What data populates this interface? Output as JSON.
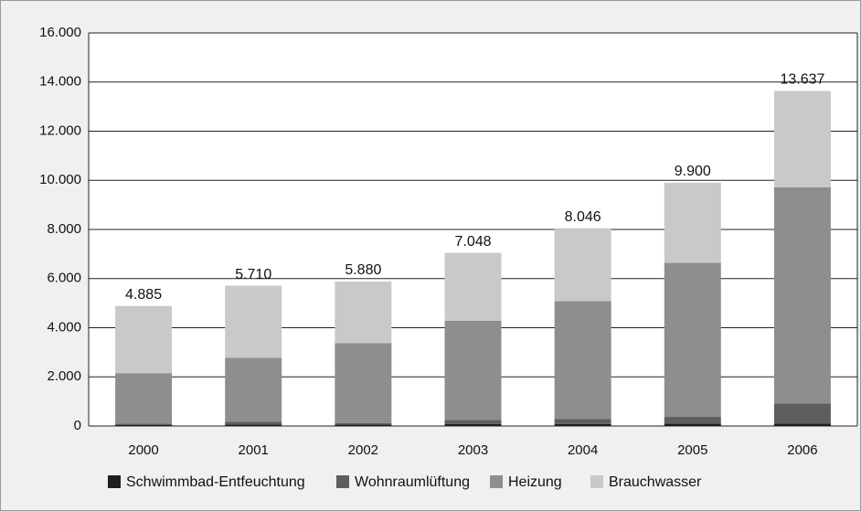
{
  "chart_data": {
    "type": "stacked_bar",
    "categories": [
      "2000",
      "2001",
      "2002",
      "2003",
      "2004",
      "2005",
      "2006"
    ],
    "series": [
      {
        "name": "Schwimmbad-Entfeuchtung",
        "color": "#1e1e1e",
        "values": [
          50,
          60,
          60,
          80,
          80,
          90,
          100
        ]
      },
      {
        "name": "Wohnraumlüftung",
        "color": "#5e5e5e",
        "values": [
          50,
          110,
          60,
          170,
          200,
          280,
          820
        ]
      },
      {
        "name": "Heizung",
        "color": "#8e8e8e",
        "values": [
          2050,
          2610,
          3250,
          4030,
          4800,
          6270,
          8800
        ]
      },
      {
        "name": "Brauchwasser",
        "color": "#c9c9c9",
        "values": [
          2735,
          2930,
          2510,
          2768,
          2966,
          3260,
          3917
        ]
      }
    ],
    "totals": {
      "values": [
        4885,
        5710,
        5880,
        7048,
        8046,
        9900,
        13637
      ],
      "value_labels": [
        "4.885",
        "5.710",
        "5.880",
        "7.048",
        "8.046",
        "9.900",
        "13.637"
      ]
    },
    "ylim": [
      0,
      16000
    ],
    "yticks": [
      0,
      {
        "value": 2000,
        "label": "2.000"
      },
      {
        "value": 4000,
        "label": "4.000"
      },
      {
        "value": 6000,
        "label": "6.000"
      },
      {
        "value": 8000,
        "label": "8.000"
      },
      {
        "value": 10000,
        "label": "10.000"
      },
      {
        "value": 12000,
        "label": "12.000"
      },
      {
        "value": 14000,
        "label": "14.000"
      },
      {
        "value": 16000,
        "label": "16.000"
      }
    ],
    "grid": true,
    "legend": "bottom"
  }
}
